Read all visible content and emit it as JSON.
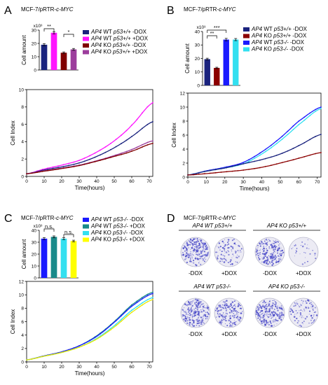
{
  "figure": {
    "panels": [
      {
        "letter": "A",
        "title": "MCF-7/pRTR-",
        "gene": "c-MYC"
      },
      {
        "letter": "B",
        "title": "MCF-7/pRTR-",
        "gene": "c-MYC"
      },
      {
        "letter": "C",
        "title": "MCF-7/pRTR-",
        "gene": "c-MYC"
      },
      {
        "letter": "D",
        "title": "MCF-7/pRTR-",
        "gene": "c-MYC"
      }
    ],
    "colony": {
      "groups": [
        {
          "gene": "AP4",
          "rest": " WT ",
          "p53": "p53+/+"
        },
        {
          "gene": "AP4",
          "rest": " KO ",
          "p53": "p53+/+"
        },
        {
          "gene": "AP4",
          "rest": " WT ",
          "p53": "p53-/-"
        },
        {
          "gene": "AP4",
          "rest": " KO ",
          "p53": "p53-/-"
        }
      ],
      "labels": [
        "-DOX",
        "+DOX"
      ]
    }
  },
  "chart_data": [
    {
      "panel": "A",
      "type": "bar",
      "ylabel": "Cell amount",
      "yexp": "x10³",
      "ylim": [
        0,
        30
      ],
      "yticks": [
        0,
        10,
        20,
        30
      ],
      "series": [
        {
          "gene": "AP4",
          "label": " WT ",
          "p53": "p53+/+",
          "dox": " -DOX",
          "color": "#1a237e",
          "value": 19,
          "err": 0.8
        },
        {
          "gene": "AP4",
          "label": " WT ",
          "p53": "p53+/+",
          "dox": " +DOX",
          "color": "#ff14ff",
          "value": 28,
          "err": 0.8
        },
        {
          "gene": "AP4",
          "label": " KO ",
          "p53": "p53+/+",
          "dox": " -DOX",
          "color": "#800000",
          "value": 13,
          "err": 0.6
        },
        {
          "gene": "AP4",
          "label": " KO ",
          "p53": "p53+/+",
          "dox": " +DOX",
          "color": "#9c3d9c",
          "value": 15.5,
          "err": 0.7
        }
      ],
      "significance": [
        {
          "from": 0,
          "to": 1,
          "label": "**"
        },
        {
          "from": 2,
          "to": 3,
          "label": "*"
        }
      ]
    },
    {
      "panel": "A",
      "type": "line",
      "ylabel": "Cell Index",
      "xlabel": "Time(hours)",
      "xlim": [
        0,
        72
      ],
      "ylim": [
        0,
        10
      ],
      "xticks": [
        0,
        10,
        20,
        30,
        40,
        50,
        60,
        70
      ],
      "yticks": [
        0,
        2,
        4,
        6,
        8,
        10
      ],
      "series": [
        {
          "color": "#ff14ff",
          "points": [
            [
              0,
              0.3
            ],
            [
              10,
              0.85
            ],
            [
              20,
              1.3
            ],
            [
              30,
              1.85
            ],
            [
              40,
              2.8
            ],
            [
              50,
              4.1
            ],
            [
              60,
              5.9
            ],
            [
              72,
              8.5
            ]
          ]
        },
        {
          "color": "#1a237e",
          "points": [
            [
              0,
              0.3
            ],
            [
              10,
              0.75
            ],
            [
              20,
              1.1
            ],
            [
              30,
              1.55
            ],
            [
              40,
              2.3
            ],
            [
              50,
              3.3
            ],
            [
              60,
              4.6
            ],
            [
              72,
              6.3
            ]
          ]
        },
        {
          "color": "#9c3d9c",
          "points": [
            [
              0,
              0.3
            ],
            [
              10,
              0.65
            ],
            [
              20,
              0.95
            ],
            [
              30,
              1.3
            ],
            [
              40,
              1.8
            ],
            [
              50,
              2.4
            ],
            [
              60,
              3.1
            ],
            [
              72,
              4.1
            ]
          ]
        },
        {
          "color": "#800000",
          "points": [
            [
              0,
              0.3
            ],
            [
              10,
              0.6
            ],
            [
              20,
              0.9
            ],
            [
              30,
              1.25
            ],
            [
              40,
              1.75
            ],
            [
              50,
              2.3
            ],
            [
              60,
              2.9
            ],
            [
              72,
              3.8
            ]
          ]
        }
      ]
    },
    {
      "panel": "B",
      "type": "bar",
      "ylabel": "Cell amount",
      "yexp": "x10³",
      "ylim": [
        0,
        40
      ],
      "yticks": [
        0,
        10,
        20,
        30,
        40
      ],
      "series": [
        {
          "gene": "AP4",
          "label": " WT ",
          "p53": "p53+/+",
          "dox": " -DOX",
          "color": "#1a237e",
          "value": 19.5,
          "err": 0.7
        },
        {
          "gene": "AP4",
          "label": " KO ",
          "p53": "p53+/+",
          "dox": " -DOX",
          "color": "#8b0000",
          "value": 13,
          "err": 0.5
        },
        {
          "gene": "AP4",
          "label": " WT ",
          "p53": "p53-/-",
          "dox": " -DOX",
          "color": "#1a1aff",
          "value": 34,
          "err": 0.9
        },
        {
          "gene": "AP4",
          "label": " KO ",
          "p53": "p53-/-",
          "dox": " -DOX",
          "color": "#33e0f0",
          "value": 34,
          "err": 0.8
        }
      ],
      "significance": [
        {
          "from": 0,
          "to": 2,
          "label": "***"
        },
        {
          "from": 0,
          "to": 1,
          "label": "**"
        }
      ]
    },
    {
      "panel": "B",
      "type": "line",
      "ylabel": "Cell Index",
      "xlabel": "Time(hours)",
      "xlim": [
        0,
        72
      ],
      "ylim": [
        0,
        12
      ],
      "xticks": [
        0,
        10,
        20,
        30,
        40,
        50,
        60,
        70
      ],
      "yticks": [
        0,
        2,
        4,
        6,
        8,
        10,
        12
      ],
      "series": [
        {
          "color": "#1a1aff",
          "points": [
            [
              0,
              0.3
            ],
            [
              10,
              0.9
            ],
            [
              20,
              1.4
            ],
            [
              30,
              2.1
            ],
            [
              40,
              3.6
            ],
            [
              50,
              5.6
            ],
            [
              60,
              8.0
            ],
            [
              72,
              10.0
            ]
          ]
        },
        {
          "color": "#33e0f0",
          "points": [
            [
              0,
              0.3
            ],
            [
              10,
              0.85
            ],
            [
              20,
              1.3
            ],
            [
              30,
              1.9
            ],
            [
              40,
              3.3
            ],
            [
              50,
              5.2
            ],
            [
              60,
              7.5
            ],
            [
              72,
              9.8
            ]
          ]
        },
        {
          "color": "#1a237e",
          "points": [
            [
              0,
              0.3
            ],
            [
              10,
              0.85
            ],
            [
              20,
              1.3
            ],
            [
              30,
              1.9
            ],
            [
              40,
              2.5
            ],
            [
              50,
              3.3
            ],
            [
              60,
              4.5
            ],
            [
              72,
              6.1
            ]
          ]
        },
        {
          "color": "#8b0000",
          "points": [
            [
              0,
              0.3
            ],
            [
              10,
              0.5
            ],
            [
              20,
              0.75
            ],
            [
              30,
              1.0
            ],
            [
              40,
              1.4
            ],
            [
              50,
              2.0
            ],
            [
              60,
              2.7
            ],
            [
              72,
              3.5
            ]
          ]
        }
      ]
    },
    {
      "panel": "C",
      "type": "bar",
      "ylabel": "Cell amount",
      "yexp": "x10³",
      "ylim": [
        0,
        40
      ],
      "yticks": [
        0,
        10,
        20,
        30,
        40
      ],
      "series": [
        {
          "gene": "AP4",
          "label": " WT ",
          "p53": "p53-/-",
          "dox": " -DOX",
          "color": "#1a1aff",
          "value": 33,
          "err": 0.8
        },
        {
          "gene": "AP4",
          "label": " WT ",
          "p53": "p53-/-",
          "dox": " +DOX",
          "color": "#1a8a8a",
          "value": 34.5,
          "err": 0.8
        },
        {
          "gene": "AP4",
          "label": " KO ",
          "p53": "p53-/-",
          "dox": " -DOX",
          "color": "#33e0f0",
          "value": 33,
          "err": 0.8
        },
        {
          "gene": "AP4",
          "label": " KO ",
          "p53": "p53-/-",
          "dox": " +DOX",
          "color": "#ffff00",
          "value": 31,
          "err": 0.7
        }
      ],
      "significance": [
        {
          "from": 0,
          "to": 1,
          "label": "n.s."
        },
        {
          "from": 2,
          "to": 3,
          "label": "n.s."
        }
      ]
    },
    {
      "panel": "C",
      "type": "line",
      "ylabel": "Cell Index",
      "xlabel": "Time(hours)",
      "xlim": [
        0,
        72
      ],
      "ylim": [
        0,
        12
      ],
      "xticks": [
        0,
        10,
        20,
        30,
        40,
        50,
        60,
        70
      ],
      "yticks": [
        0,
        2,
        4,
        6,
        8,
        10,
        12
      ],
      "series": [
        {
          "color": "#1a8a8a",
          "points": [
            [
              0,
              0.3
            ],
            [
              10,
              0.9
            ],
            [
              20,
              1.5
            ],
            [
              30,
              2.4
            ],
            [
              40,
              3.9
            ],
            [
              50,
              6.0
            ],
            [
              60,
              8.5
            ],
            [
              72,
              10.4
            ]
          ]
        },
        {
          "color": "#1a1aff",
          "points": [
            [
              0,
              0.3
            ],
            [
              10,
              0.9
            ],
            [
              20,
              1.5
            ],
            [
              30,
              2.4
            ],
            [
              40,
              3.8
            ],
            [
              50,
              5.9
            ],
            [
              60,
              8.3
            ],
            [
              72,
              10.2
            ]
          ]
        },
        {
          "color": "#33e0f0",
          "points": [
            [
              0,
              0.3
            ],
            [
              10,
              0.85
            ],
            [
              20,
              1.4
            ],
            [
              30,
              2.2
            ],
            [
              40,
              3.5
            ],
            [
              50,
              5.4
            ],
            [
              60,
              7.7
            ],
            [
              72,
              9.6
            ]
          ]
        },
        {
          "color": "#e8e800",
          "points": [
            [
              0,
              0.3
            ],
            [
              10,
              0.85
            ],
            [
              20,
              1.4
            ],
            [
              30,
              2.2
            ],
            [
              40,
              3.4
            ],
            [
              50,
              5.2
            ],
            [
              60,
              7.4
            ],
            [
              72,
              9.3
            ]
          ]
        }
      ]
    }
  ]
}
